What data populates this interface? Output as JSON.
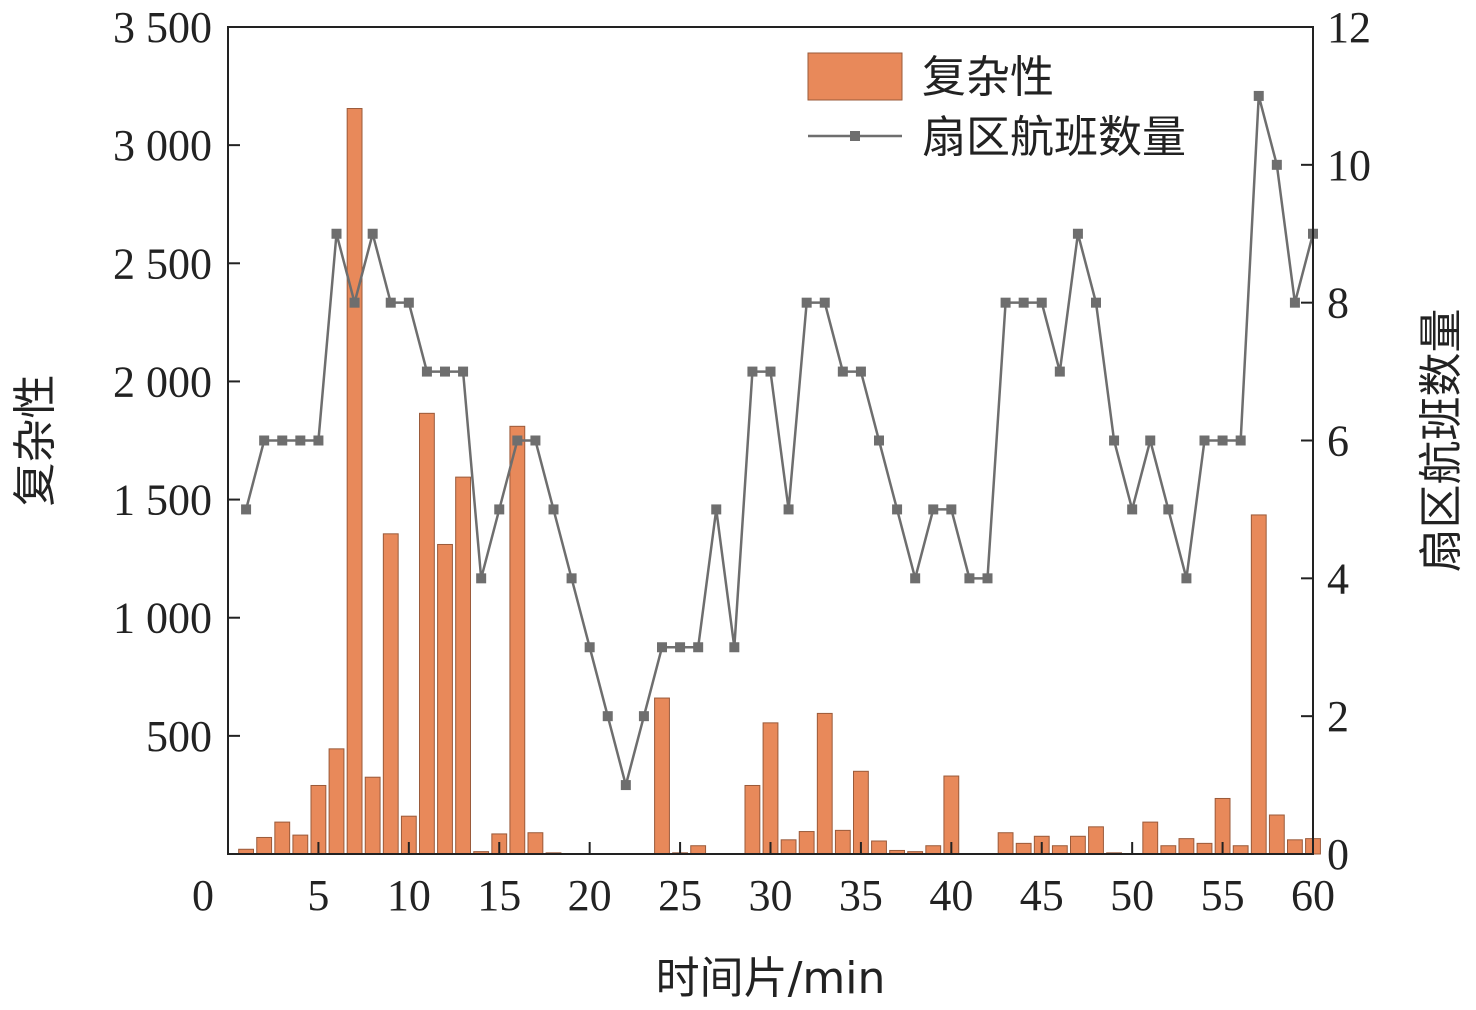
{
  "chart_data": {
    "type": "bar+line",
    "xlabel": "时间片/min",
    "ylabel_left": "复杂性",
    "ylabel_right": "扇区航班数量",
    "x_range": [
      0,
      60
    ],
    "y_left_range": [
      0,
      3500
    ],
    "y_right_range": [
      0,
      12
    ],
    "x_ticks": [
      0,
      5,
      10,
      15,
      20,
      25,
      30,
      35,
      40,
      45,
      50,
      55,
      60
    ],
    "x_tick_labels": [
      "0",
      "5",
      "10",
      "15",
      "20",
      "25",
      "30",
      "35",
      "40",
      "45",
      "50",
      "55",
      "60"
    ],
    "y_left_ticks": [
      500,
      1000,
      1500,
      2000,
      2500,
      3000,
      3500
    ],
    "y_left_tick_labels": [
      "500",
      "1 000",
      "1 500",
      "2 000",
      "2 500",
      "3 000",
      "3 500"
    ],
    "y_right_ticks": [
      0,
      2,
      4,
      6,
      8,
      10,
      12
    ],
    "y_right_tick_labels": [
      "0",
      "2",
      "4",
      "6",
      "8",
      "10",
      "12"
    ],
    "legend_position": "top-right",
    "colors": {
      "bar_fill": "#E8895A",
      "bar_stroke": "#9A5A3A",
      "line": "#6E6E6E",
      "marker": "#6E6E6E"
    },
    "x": [
      1,
      2,
      3,
      4,
      5,
      6,
      7,
      8,
      9,
      10,
      11,
      12,
      13,
      14,
      15,
      16,
      17,
      18,
      19,
      20,
      21,
      22,
      23,
      24,
      25,
      26,
      27,
      28,
      29,
      30,
      31,
      32,
      33,
      34,
      35,
      36,
      37,
      38,
      39,
      40,
      41,
      42,
      43,
      44,
      45,
      46,
      47,
      48,
      49,
      50,
      51,
      52,
      53,
      54,
      55,
      56,
      57,
      58,
      59,
      60
    ],
    "series": [
      {
        "name": "复杂性",
        "kind": "bar",
        "axis": "left",
        "values": [
          20,
          70,
          135,
          80,
          290,
          445,
          3155,
          325,
          1355,
          160,
          1865,
          1310,
          1595,
          10,
          85,
          1810,
          90,
          5,
          0,
          0,
          0,
          0,
          0,
          660,
          5,
          35,
          0,
          0,
          290,
          555,
          60,
          95,
          595,
          100,
          350,
          55,
          15,
          10,
          35,
          330,
          0,
          0,
          90,
          45,
          75,
          35,
          75,
          115,
          5,
          0,
          135,
          35,
          65,
          45,
          235,
          35,
          1435,
          165,
          60,
          65
        ]
      },
      {
        "name": "扇区航班数量",
        "kind": "line",
        "axis": "right",
        "values": [
          5,
          6,
          6,
          6,
          6,
          9,
          8,
          9,
          8,
          8,
          7,
          7,
          7,
          4,
          5,
          6,
          6,
          5,
          4,
          3,
          2,
          1,
          2,
          3,
          3,
          3,
          5,
          3,
          7,
          7,
          5,
          8,
          8,
          7,
          7,
          6,
          5,
          4,
          5,
          5,
          4,
          4,
          8,
          8,
          8,
          7,
          9,
          8,
          6,
          5,
          6,
          5,
          4,
          6,
          6,
          6,
          11,
          10,
          8,
          9
        ]
      }
    ]
  }
}
